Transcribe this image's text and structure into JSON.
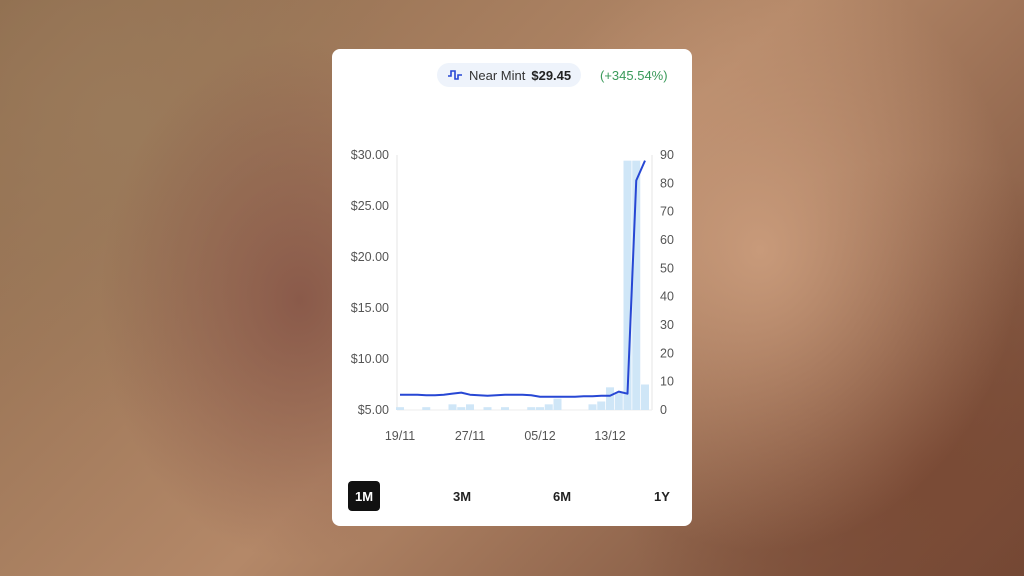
{
  "header": {
    "condition": "Near Mint",
    "price": "$29.45",
    "change": "(+345.54%)",
    "icon": "price-line-icon"
  },
  "ranges": [
    {
      "label": "1M",
      "active": true
    },
    {
      "label": "3M",
      "active": false
    },
    {
      "label": "6M",
      "active": false
    },
    {
      "label": "1Y",
      "active": false
    }
  ],
  "colors": {
    "line": "#2747d4",
    "volume": "#cfe6f7",
    "change": "#3a9a5a"
  },
  "chart_data": {
    "type": "line",
    "x_ticks": [
      "19/11",
      "27/11",
      "05/12",
      "13/12"
    ],
    "x": [
      "19/11",
      "20/11",
      "21/11",
      "22/11",
      "23/11",
      "24/11",
      "25/11",
      "26/11",
      "27/11",
      "28/11",
      "29/11",
      "30/11",
      "01/12",
      "02/12",
      "03/12",
      "04/12",
      "05/12",
      "06/12",
      "07/12",
      "08/12",
      "09/12",
      "10/12",
      "11/12",
      "12/12",
      "13/12",
      "14/12",
      "15/12",
      "16/12",
      "17/12"
    ],
    "series": [
      {
        "axis": "left",
        "type": "line",
        "values": [
          6.5,
          6.5,
          6.5,
          6.45,
          6.45,
          6.5,
          6.6,
          6.7,
          6.5,
          6.45,
          6.4,
          6.45,
          6.5,
          6.5,
          6.5,
          6.45,
          6.3,
          6.3,
          6.3,
          6.3,
          6.3,
          6.35,
          6.35,
          6.4,
          6.4,
          6.8,
          6.6,
          27.5,
          29.45
        ]
      },
      {
        "axis": "right",
        "type": "bar",
        "values": [
          1,
          0,
          0,
          1,
          0,
          0,
          2,
          1,
          2,
          0,
          1,
          0,
          1,
          0,
          0,
          1,
          1,
          2,
          4,
          0,
          0,
          0,
          2,
          3,
          8,
          6,
          88,
          88,
          9
        ]
      }
    ],
    "y_left": {
      "ticks": [
        "$5.00",
        "$10.00",
        "$15.00",
        "$20.00",
        "$25.00",
        "$30.00"
      ],
      "range": [
        5,
        30
      ]
    },
    "y_right": {
      "ticks": [
        "0",
        "10",
        "20",
        "30",
        "40",
        "50",
        "60",
        "70",
        "80",
        "90"
      ],
      "range": [
        0,
        90
      ]
    },
    "grid": false
  }
}
